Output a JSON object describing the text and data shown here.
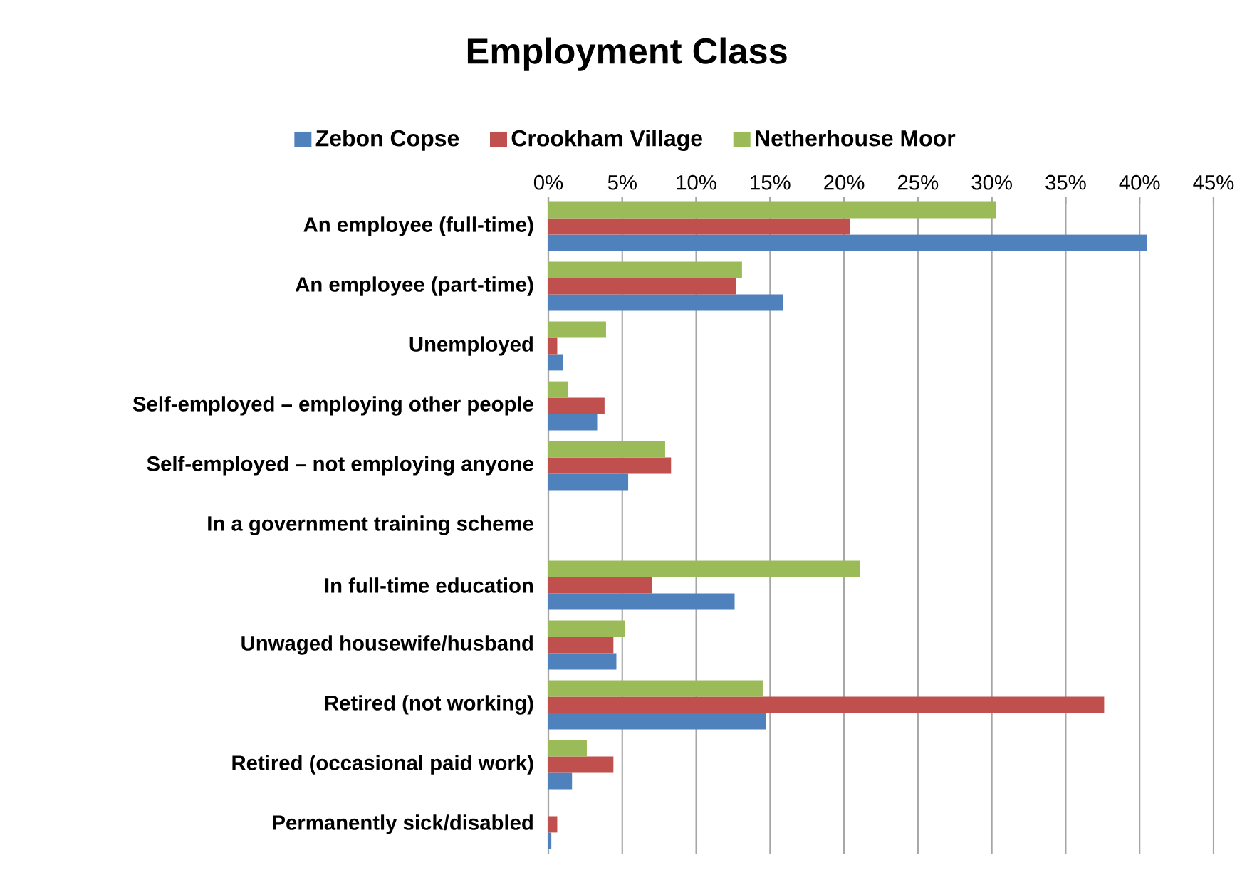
{
  "chart_data": {
    "type": "bar",
    "orientation": "horizontal",
    "title": "Employment Class",
    "categories": [
      "An employee (full-time)",
      "An employee (part-time)",
      "Unemployed",
      "Self-employed – employing other people",
      "Self-employed – not employing anyone",
      "In a government training scheme",
      "In full-time education",
      "Unwaged housewife/husband",
      "Retired (not working)",
      "Retired (occasional paid work)",
      "Permanently sick/disabled"
    ],
    "series": [
      {
        "name": "Zebon Copse",
        "color": "#4f81bd",
        "values": [
          40.5,
          15.9,
          1.0,
          3.3,
          5.4,
          0,
          12.6,
          4.6,
          14.7,
          1.6,
          0.2
        ]
      },
      {
        "name": "Crookham Village",
        "color": "#c0504d",
        "values": [
          20.4,
          12.7,
          0.6,
          3.8,
          8.3,
          0,
          7.0,
          4.4,
          37.6,
          4.4,
          0.6
        ]
      },
      {
        "name": "Netherhouse Moor",
        "color": "#9bbb59",
        "values": [
          30.3,
          13.1,
          3.9,
          1.3,
          7.9,
          0,
          21.1,
          5.2,
          14.5,
          2.6,
          0
        ]
      }
    ],
    "xlim": [
      0,
      45
    ],
    "xticks": [
      {
        "value": 0,
        "label": "0%"
      },
      {
        "value": 5,
        "label": "5%"
      },
      {
        "value": 10,
        "label": "10%"
      },
      {
        "value": 15,
        "label": "15%"
      },
      {
        "value": 20,
        "label": "20%"
      },
      {
        "value": 25,
        "label": "25%"
      },
      {
        "value": 30,
        "label": "30%"
      },
      {
        "value": 35,
        "label": "35%"
      },
      {
        "value": 40,
        "label": "40%"
      },
      {
        "value": 45,
        "label": "45%"
      }
    ],
    "grid": "x",
    "legend": "top"
  }
}
